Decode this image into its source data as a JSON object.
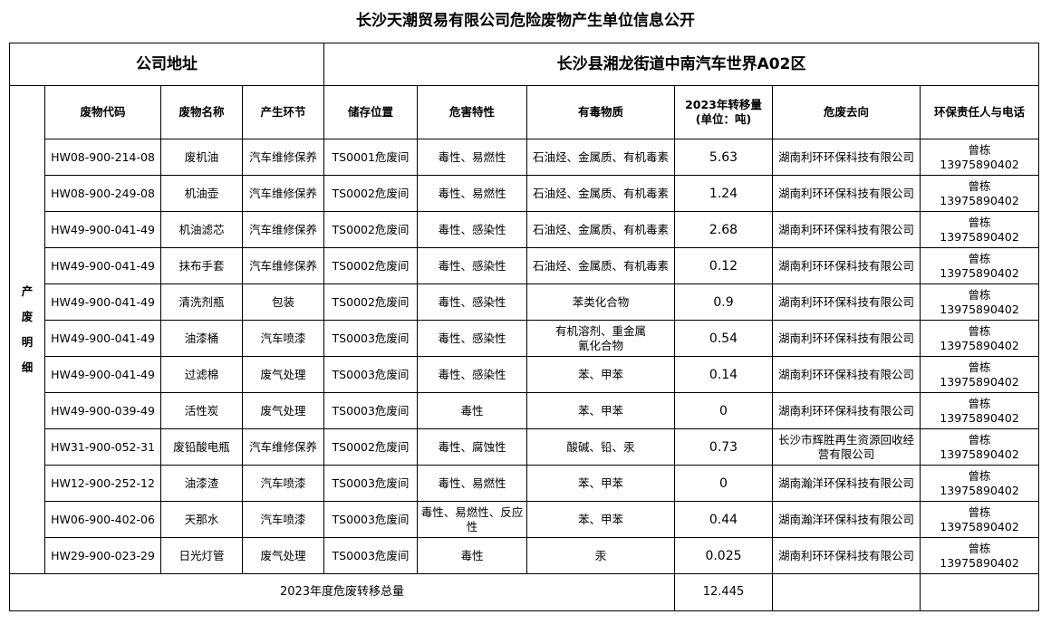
{
  "title": "长沙天潮贸易有限公司危险废物产生单位信息公开",
  "address_label": "公司地址",
  "address_value": "长沙县湘龙街道中南汽车世界A02区",
  "side_label": "产废明细",
  "headers": [
    "废物代码",
    "废物名称",
    "产生环节",
    "储存位置",
    "危害特性",
    "有毒物质",
    "2023年转移量\n(单位：吨)",
    "危废去向",
    "环保责任人与电话"
  ],
  "rows": [
    [
      "HW08-900-214-08",
      "废机油",
      "汽车维修保养",
      "TS0001危废间",
      "毒性、易燃性",
      "石油烃、金属质、有机毒素",
      "5.63",
      "湖南利环环保科技有限公司",
      "曾栋\n13975890402"
    ],
    [
      "HW08-900-249-08",
      "机油壶",
      "汽车维修保养",
      "TS0002危废间",
      "毒性、易燃性",
      "石油烃、金属质、有机毒素",
      "1.24",
      "湖南利环环保科技有限公司",
      "曾栋\n13975890402"
    ],
    [
      "HW49-900-041-49",
      "机油滤芯",
      "汽车维修保养",
      "TS0002危废间",
      "毒性、感染性",
      "石油烃、金属质、有机毒素",
      "2.68",
      "湖南利环环保科技有限公司",
      "曾栋\n13975890402"
    ],
    [
      "HW49-900-041-49",
      "抹布手套",
      "汽车维修保养",
      "TS0002危废间",
      "毒性、感染性",
      "石油烃、金属质、有机毒素",
      "0.12",
      "湖南利环环保科技有限公司",
      "曾栋\n13975890402"
    ],
    [
      "HW49-900-041-49",
      "清洗剂瓶",
      "包装",
      "TS0002危废间",
      "毒性、感染性",
      "苯类化合物",
      "0.9",
      "湖南利环环保科技有限公司",
      "曾栋\n13975890402"
    ],
    [
      "HW49-900-041-49",
      "油漆桶",
      "汽车喷漆",
      "TS0003危废间",
      "毒性、感染性",
      "有机溶剂、重金属\n氰化合物",
      "0.54",
      "湖南利环环保科技有限公司",
      "曾栋\n13975890402"
    ],
    [
      "HW49-900-041-49",
      "过滤棉",
      "废气处理",
      "TS0003危废间",
      "毒性、感染性",
      "苯、甲苯",
      "0.14",
      "湖南利环环保科技有限公司",
      "曾栋\n13975890402"
    ],
    [
      "HW49-900-039-49",
      "活性炭",
      "废气处理",
      "TS0003危废间",
      "毒性",
      "苯、甲苯",
      "0",
      "湖南利环环保科技有限公司",
      "曾栋\n13975890402"
    ],
    [
      "HW31-900-052-31",
      "废铅酸电瓶",
      "汽车维修保养",
      "TS0002危废间",
      "毒性、腐蚀性",
      "酸碱、铅、汞",
      "0.73",
      "长沙市辉胜再生资源回收经营有限公司",
      "曾栋\n13975890402"
    ],
    [
      "HW12-900-252-12",
      "油漆渣",
      "汽车喷漆",
      "TS0003危废间",
      "毒性、易燃性",
      "苯、甲苯",
      "0",
      "湖南瀚洋环保科技有限公司",
      "曾栋\n13975890402"
    ],
    [
      "HW06-900-402-06",
      "天那水",
      "汽车喷漆",
      "TS0003危废间",
      "毒性、易燃性、反应性",
      "苯、甲苯",
      "0.44",
      "湖南瀚洋环保科技有限公司",
      "曾栋\n13975890402"
    ],
    [
      "HW29-900-023-29",
      "日光灯管",
      "废气处理",
      "TS0003危废间",
      "毒性",
      "汞",
      "0.025",
      "湖南利环环保科技有限公司",
      "曾栋\n13975890402"
    ]
  ],
  "total_label": "2023年度危废转移总量",
  "total_value": "12.445"
}
